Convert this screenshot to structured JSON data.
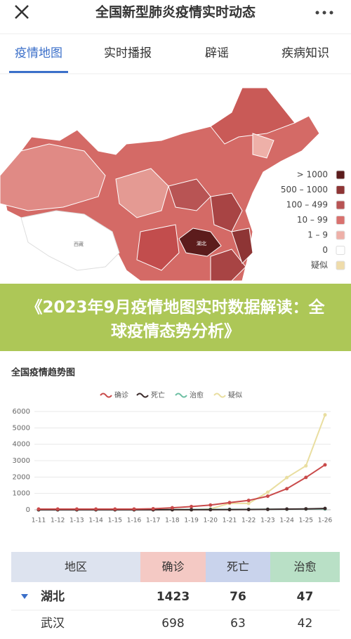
{
  "header": {
    "title": "全国新型肺炎疫情实时动态"
  },
  "tabs": {
    "items": [
      "疫情地图",
      "实时播报",
      "辟谣",
      "疾病知识"
    ],
    "active": 0
  },
  "map": {
    "labels": [
      "湖北",
      "西藏"
    ],
    "legend": [
      {
        "label": "> 1000",
        "color": "#5c1c1c"
      },
      {
        "label": "500 – 1000",
        "color": "#8e3535"
      },
      {
        "label": "100 – 499",
        "color": "#b85454"
      },
      {
        "label": "10 – 99",
        "color": "#d9716e"
      },
      {
        "label": "1 – 9",
        "color": "#eeb0a8"
      },
      {
        "label": "0",
        "color": "#ffffff"
      },
      {
        "label": "疑似",
        "color": "#efdcaa"
      }
    ]
  },
  "banner": {
    "text": "《2023年9月疫情地图实时数据解读：全球疫情态势分析》"
  },
  "chart_data": {
    "type": "line",
    "title": "全国疫情趋势图",
    "categories": [
      "1-11",
      "1-12",
      "1-13",
      "1-14",
      "1-15",
      "1-16",
      "1-17",
      "1-18",
      "1-19",
      "1-20",
      "1-21",
      "1-22",
      "1-23",
      "1-24",
      "1-25",
      "1-26"
    ],
    "series": [
      {
        "name": "确诊",
        "color": "#c94a4a",
        "values": [
          41,
          41,
          41,
          41,
          41,
          45,
          62,
          121,
          198,
          291,
          440,
          571,
          830,
          1287,
          1975,
          2744
        ]
      },
      {
        "name": "死亡",
        "color": "#3a2a2a",
        "values": [
          1,
          1,
          1,
          1,
          1,
          2,
          2,
          3,
          3,
          6,
          9,
          17,
          25,
          41,
          56,
          80
        ]
      },
      {
        "name": "治愈",
        "color": "#6dbfa3",
        "values": [
          2,
          2,
          3,
          5,
          7,
          10,
          12,
          17,
          21,
          25,
          25,
          28,
          34,
          38,
          49,
          51
        ]
      },
      {
        "name": "疑似",
        "color": "#e9dea0",
        "values": [
          0,
          0,
          0,
          0,
          0,
          0,
          0,
          0,
          0,
          54,
          393,
          393,
          1072,
          1965,
          2684,
          5794
        ]
      }
    ],
    "ylim": [
      0,
      6000
    ],
    "yticks": [
      0,
      1000,
      2000,
      3000,
      4000,
      5000,
      6000
    ],
    "grid": true
  },
  "table": {
    "header": [
      "地区",
      "确诊",
      "死亡",
      "治愈"
    ],
    "rows": [
      [
        "湖北",
        1423,
        76,
        47
      ],
      [
        "武汉",
        698,
        63,
        42
      ]
    ]
  }
}
